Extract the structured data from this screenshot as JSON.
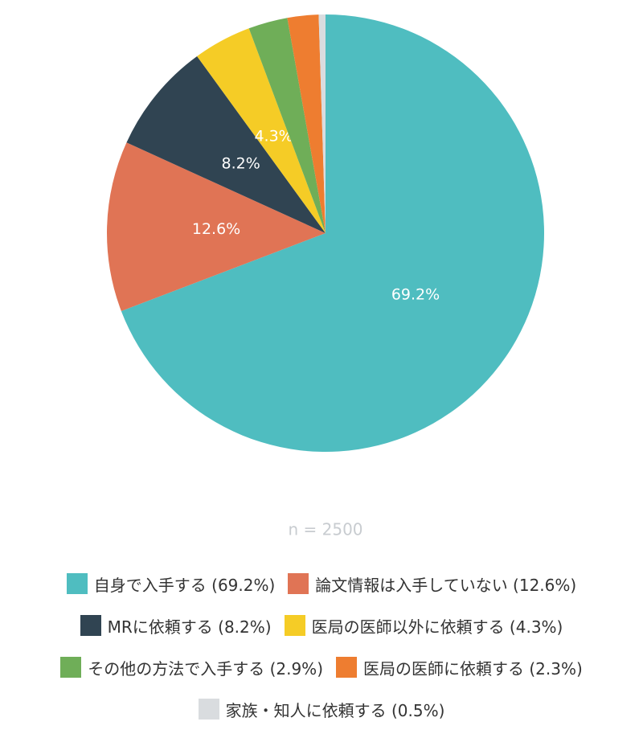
{
  "chart_data": {
    "type": "pie",
    "subtitle": "n = 2500",
    "categories": [
      "自身で入手する (69.2%)",
      "論文情報は入手していない (12.6%)",
      "MRに依頼する (8.2%)",
      "医局の医師以外に依頼する (4.3%)",
      "その他の方法で入手する (2.9%)",
      "医局の医師に依頼する (2.3%)",
      "家族・知人に依頼する (0.5%)"
    ],
    "values": [
      69.2,
      12.6,
      8.2,
      4.3,
      2.9,
      2.3,
      0.5
    ],
    "value_labels": [
      "69.2%",
      "12.6%",
      "8.2%",
      "4.3%",
      null,
      null,
      null
    ],
    "colors": [
      "#4fbdc0",
      "#e07455",
      "#304452",
      "#f5cc26",
      "#6fae58",
      "#ee7d30",
      "#d9dcdf"
    ]
  }
}
